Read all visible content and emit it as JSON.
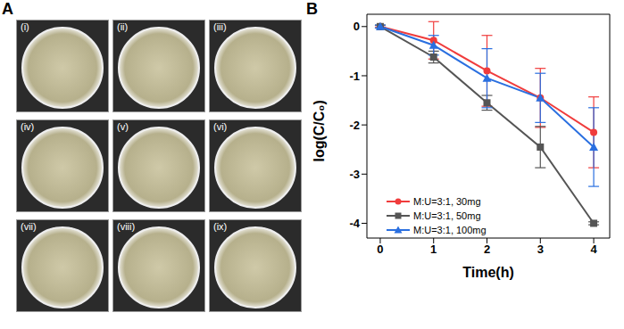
{
  "panel_labels": [
    "A",
    "B"
  ],
  "dishes": [
    "(i)",
    "(ii)",
    "(iii)",
    "(iv)",
    "(v)",
    "(vi)",
    "(vii)",
    "(viii)",
    "(ix)"
  ],
  "chart_data": {
    "type": "line",
    "x_label": "Time(h)",
    "y_label": "log(C/C₀)",
    "x": [
      0,
      1,
      2,
      3,
      4
    ],
    "xlim": [
      -0.25,
      4.3
    ],
    "xticks": [
      0,
      1,
      2,
      3,
      4
    ],
    "ylim": [
      -4.3,
      0.25
    ],
    "yticks": [
      -4,
      -3,
      -2,
      -1,
      0
    ],
    "legend": "lower left",
    "series": [
      {
        "name": "M:U=3:1, 30mg",
        "color": "#f03c3c",
        "marker": "circle",
        "values": [
          0,
          -0.28,
          -0.9,
          -1.45,
          -2.15
        ],
        "errors": [
          0.02,
          0.38,
          0.72,
          0.6,
          0.72
        ]
      },
      {
        "name": "M:U=3:1, 50mg",
        "color": "#555555",
        "marker": "square",
        "values": [
          0,
          -0.62,
          -1.55,
          -2.45,
          -4.0
        ],
        "errors": [
          0.03,
          0.12,
          0.15,
          0.42,
          0.03
        ]
      },
      {
        "name": "M:U=3:1, 100mg",
        "color": "#2a6fe0",
        "marker": "triangle",
        "values": [
          0,
          -0.38,
          -1.05,
          -1.45,
          -2.45
        ],
        "errors": [
          0.03,
          0.2,
          0.6,
          0.5,
          0.8
        ]
      }
    ]
  }
}
